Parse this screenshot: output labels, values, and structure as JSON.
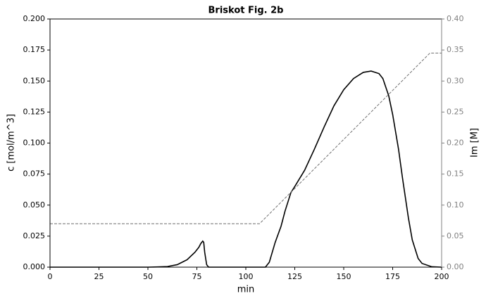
{
  "chart_data": {
    "type": "line",
    "title": "Briskot Fig. 2b",
    "xlabel": "min",
    "ylabel": "c [mol/m^3]",
    "y2label": "Im [M]",
    "xlim": [
      0,
      200
    ],
    "xticks": [
      0,
      25,
      50,
      75,
      100,
      125,
      150,
      175,
      200
    ],
    "ylim": [
      0,
      0.2
    ],
    "yticks": [
      {
        "value": 0,
        "label": "0.000"
      },
      {
        "value": 0.025,
        "label": "0.025"
      },
      {
        "value": 0.05,
        "label": "0.050"
      },
      {
        "value": 0.075,
        "label": "0.075"
      },
      {
        "value": 0.1,
        "label": "0.100"
      },
      {
        "value": 0.125,
        "label": "0.125"
      },
      {
        "value": 0.15,
        "label": "0.150"
      },
      {
        "value": 0.175,
        "label": "0.175"
      },
      {
        "value": 0.2,
        "label": "0.200"
      }
    ],
    "y2lim": [
      0,
      0.4
    ],
    "y2ticks": [
      {
        "value": 0,
        "label": "0.00"
      },
      {
        "value": 0.05,
        "label": "0.05"
      },
      {
        "value": 0.1,
        "label": "0.10"
      },
      {
        "value": 0.15,
        "label": "0.15"
      },
      {
        "value": 0.2,
        "label": "0.20"
      },
      {
        "value": 0.25,
        "label": "0.25"
      },
      {
        "value": 0.3,
        "label": "0.30"
      },
      {
        "value": 0.35,
        "label": "0.35"
      },
      {
        "value": 0.4,
        "label": "0.40"
      }
    ],
    "y2color": "#808080",
    "series": [
      {
        "color": "#000000",
        "x": [
          0,
          50,
          55,
          60,
          65,
          70,
          74,
          76,
          77,
          78,
          78.5,
          79,
          80,
          81,
          110,
          112,
          115,
          118,
          120,
          122,
          123,
          125,
          130,
          135,
          140,
          145,
          150,
          155,
          160,
          164,
          168,
          170,
          173,
          175,
          178,
          180,
          183,
          185,
          188,
          190,
          195,
          200
        ],
        "values": [
          0,
          0,
          0.0002,
          0.0005,
          0.002,
          0.006,
          0.012,
          0.016,
          0.019,
          0.021,
          0.02,
          0.012,
          0.002,
          0,
          0,
          0.004,
          0.02,
          0.033,
          0.045,
          0.055,
          0.06,
          0.065,
          0.078,
          0.095,
          0.113,
          0.13,
          0.143,
          0.152,
          0.157,
          0.158,
          0.156,
          0.152,
          0.138,
          0.123,
          0.095,
          0.072,
          0.04,
          0.022,
          0.007,
          0.003,
          0.0003,
          0
        ]
      },
      {
        "color": "#707070",
        "axis": "y2",
        "dashed": true,
        "x": [
          0,
          107,
          194,
          200
        ],
        "values": [
          0.07,
          0.07,
          0.345,
          0.345
        ]
      }
    ]
  }
}
